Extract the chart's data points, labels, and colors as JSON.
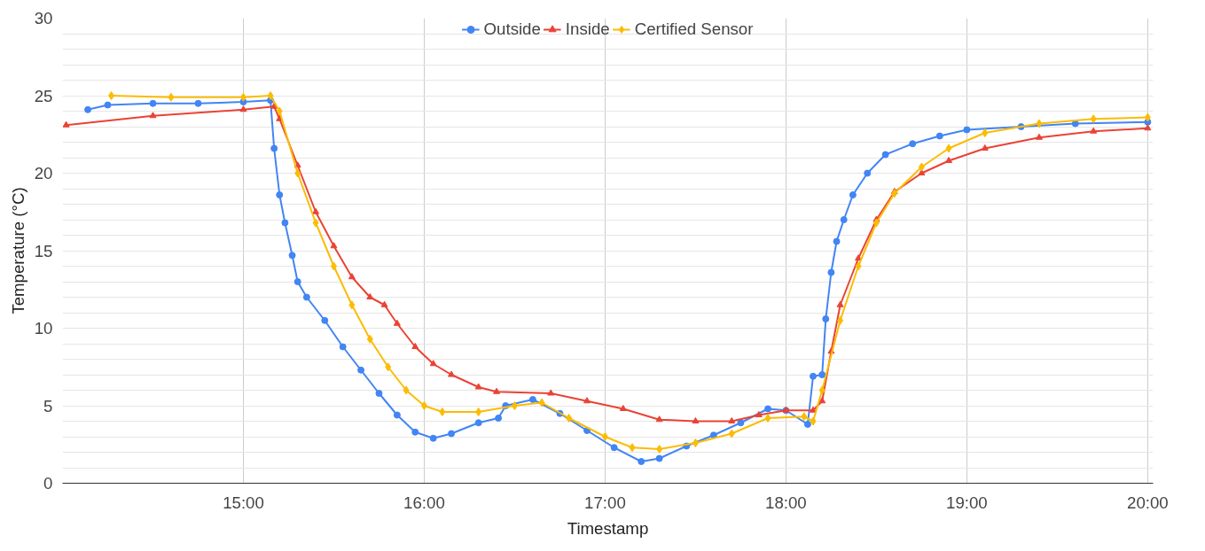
{
  "chart_data": {
    "type": "line",
    "xlabel": "Timestamp",
    "ylabel": "Temperature (°C)",
    "xlim": [
      14.0,
      20.03
    ],
    "xticks": [
      {
        "value": 15,
        "label": "15:00"
      },
      {
        "value": 16,
        "label": "16:00"
      },
      {
        "value": 17,
        "label": "17:00"
      },
      {
        "value": 18,
        "label": "18:00"
      },
      {
        "value": 19,
        "label": "19:00"
      },
      {
        "value": 20,
        "label": "20:00"
      }
    ],
    "ylim": [
      0,
      30
    ],
    "yticks": [
      0,
      {
        "value": 1,
        "label": null
      },
      {
        "value": 2,
        "label": null
      },
      {
        "value": 3,
        "label": null
      },
      {
        "value": 4,
        "label": null
      },
      5,
      {
        "value": 6,
        "label": null
      },
      {
        "value": 7,
        "label": null
      },
      {
        "value": 8,
        "label": null
      },
      {
        "value": 9,
        "label": null
      },
      10,
      {
        "value": 11,
        "label": null
      },
      {
        "value": 12,
        "label": null
      },
      {
        "value": 13,
        "label": null
      },
      {
        "value": 14,
        "label": null
      },
      15,
      {
        "value": 16,
        "label": null
      },
      {
        "value": 17,
        "label": null
      },
      {
        "value": 18,
        "label": null
      },
      {
        "value": 19,
        "label": null
      },
      20,
      {
        "value": 21,
        "label": null
      },
      {
        "value": 22,
        "label": null
      },
      {
        "value": 23,
        "label": null
      },
      {
        "value": 24,
        "label": null
      },
      25,
      {
        "value": 26,
        "label": null
      },
      {
        "value": 27,
        "label": null
      },
      {
        "value": 28,
        "label": null
      },
      {
        "value": 29,
        "label": null
      },
      30
    ],
    "grid": true,
    "legend": "top",
    "line_style": "solid",
    "series": [
      {
        "name": "Outside",
        "color": "#4285f4",
        "marker": "circle",
        "x": [
          14.14,
          14.25,
          14.5,
          14.75,
          15.0,
          15.15,
          15.17,
          15.2,
          15.23,
          15.27,
          15.3,
          15.35,
          15.45,
          15.55,
          15.65,
          15.75,
          15.85,
          15.95,
          16.05,
          16.15,
          16.3,
          16.41,
          16.45,
          16.6,
          16.75,
          16.9,
          17.05,
          17.2,
          17.3,
          17.45,
          17.6,
          17.75,
          17.9,
          18.0,
          18.12,
          18.15,
          18.2,
          18.22,
          18.25,
          18.28,
          18.32,
          18.37,
          18.45,
          18.55,
          18.7,
          18.85,
          19.0,
          19.3,
          19.6,
          20.0
        ],
        "values": [
          24.1,
          24.4,
          24.5,
          24.5,
          24.6,
          24.7,
          21.6,
          18.6,
          16.8,
          14.7,
          13.0,
          12.0,
          10.5,
          8.8,
          7.3,
          5.8,
          4.4,
          3.3,
          2.9,
          3.2,
          3.9,
          4.2,
          5.0,
          5.4,
          4.5,
          3.4,
          2.3,
          1.4,
          1.6,
          2.4,
          3.1,
          3.9,
          4.8,
          4.7,
          3.8,
          6.9,
          7.0,
          10.6,
          13.6,
          15.6,
          17.0,
          18.6,
          20.0,
          21.2,
          21.9,
          22.4,
          22.8,
          23.0,
          23.2,
          23.3
        ]
      },
      {
        "name": "Inside",
        "color": "#ea4335",
        "marker": "triangle",
        "x": [
          14.02,
          14.5,
          15.0,
          15.17,
          15.2,
          15.3,
          15.4,
          15.5,
          15.6,
          15.7,
          15.78,
          15.85,
          15.95,
          16.05,
          16.15,
          16.3,
          16.4,
          16.7,
          16.9,
          17.1,
          17.3,
          17.5,
          17.7,
          17.85,
          18.0,
          18.15,
          18.2,
          18.25,
          18.3,
          18.4,
          18.5,
          18.6,
          18.75,
          18.9,
          19.1,
          19.4,
          19.7,
          20.0
        ],
        "values": [
          23.1,
          23.7,
          24.1,
          24.3,
          23.5,
          20.5,
          17.5,
          15.3,
          13.3,
          12.0,
          11.5,
          10.3,
          8.8,
          7.7,
          7.0,
          6.2,
          5.9,
          5.8,
          5.3,
          4.8,
          4.1,
          4.0,
          4.0,
          4.4,
          4.7,
          4.7,
          5.3,
          8.5,
          11.5,
          14.5,
          17.0,
          18.8,
          20.0,
          20.8,
          21.6,
          22.3,
          22.7,
          22.9
        ]
      },
      {
        "name": "Certified Sensor",
        "color": "#fbbc04",
        "marker": "diamond",
        "x": [
          14.27,
          14.6,
          15.0,
          15.15,
          15.2,
          15.3,
          15.4,
          15.5,
          15.6,
          15.7,
          15.8,
          15.9,
          16.0,
          16.1,
          16.3,
          16.5,
          16.65,
          16.8,
          17.0,
          17.15,
          17.3,
          17.5,
          17.7,
          17.9,
          18.1,
          18.15,
          18.2,
          18.3,
          18.4,
          18.5,
          18.6,
          18.75,
          18.9,
          19.1,
          19.4,
          19.7,
          20.0
        ],
        "values": [
          25.0,
          24.9,
          24.9,
          25.0,
          24.0,
          20.0,
          16.8,
          14.0,
          11.5,
          9.3,
          7.5,
          6.0,
          5.0,
          4.6,
          4.6,
          5.0,
          5.2,
          4.2,
          3.0,
          2.3,
          2.2,
          2.6,
          3.2,
          4.2,
          4.3,
          4.0,
          6.0,
          10.5,
          14.0,
          16.8,
          18.7,
          20.4,
          21.6,
          22.6,
          23.2,
          23.5,
          23.6
        ]
      }
    ]
  }
}
